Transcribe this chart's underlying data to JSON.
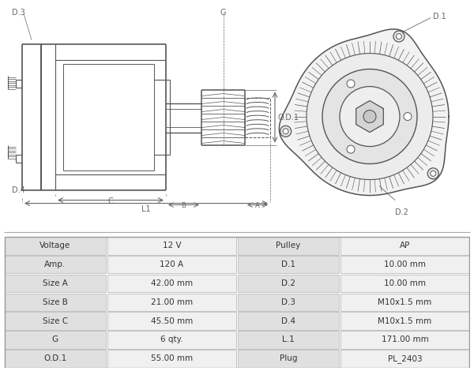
{
  "bg_color": "#ffffff",
  "table_bg_label": "#e0e0e0",
  "table_bg_value": "#f0f0f0",
  "table_border": "#bbbbbb",
  "left_col": [
    "Voltage",
    "Amp.",
    "Size A",
    "Size B",
    "Size C",
    "G",
    "O.D.1"
  ],
  "left_val": [
    "12 V",
    "120 A",
    "42.00 mm",
    "21.00 mm",
    "45.50 mm",
    "6 qty.",
    "55.00 mm"
  ],
  "right_col": [
    "Pulley",
    "D.1",
    "D.2",
    "D.3",
    "D.4",
    "L.1",
    "Plug"
  ],
  "right_val": [
    "AP",
    "10.00 mm",
    "10.00 mm",
    "M10x1.5 mm",
    "M10x1.5 mm",
    "171.00 mm",
    "PL_2403"
  ],
  "diagram_color": "#555555",
  "dim_color": "#666666"
}
